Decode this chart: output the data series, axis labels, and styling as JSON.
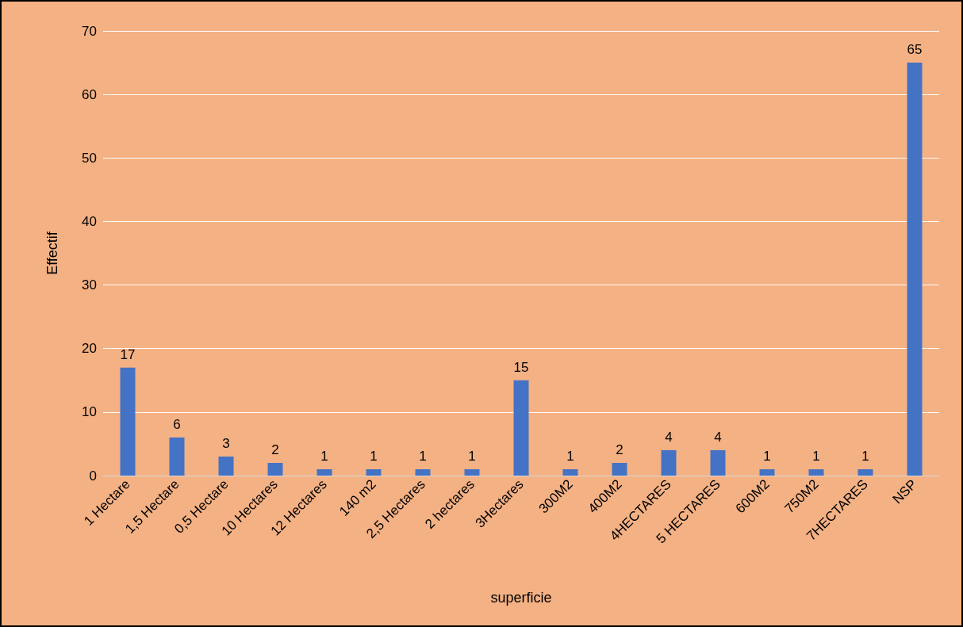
{
  "chart_data": {
    "type": "bar",
    "xlabel": "superficie",
    "ylabel": "Effectif",
    "categories": [
      "1 Hectare",
      "1,5 Hectare",
      "0,5 Hectare",
      "10 Hectares",
      "12 Hectares",
      "140 m2",
      "2,5 Hectares",
      "2 hectares",
      "3Hectares",
      "300M2",
      "400M2",
      "4HECTARES",
      "5 HECTARES",
      "600M2",
      "750M2",
      "7HECTARES",
      "NSP"
    ],
    "values": [
      17,
      6,
      3,
      2,
      1,
      1,
      1,
      1,
      15,
      1,
      2,
      4,
      4,
      1,
      1,
      1,
      65
    ],
    "color": "#4472c4",
    "data_labels": true,
    "ylim": [
      0,
      70
    ],
    "yticks": [
      0,
      10,
      20,
      30,
      40,
      50,
      60,
      70
    ],
    "grid": "y"
  }
}
